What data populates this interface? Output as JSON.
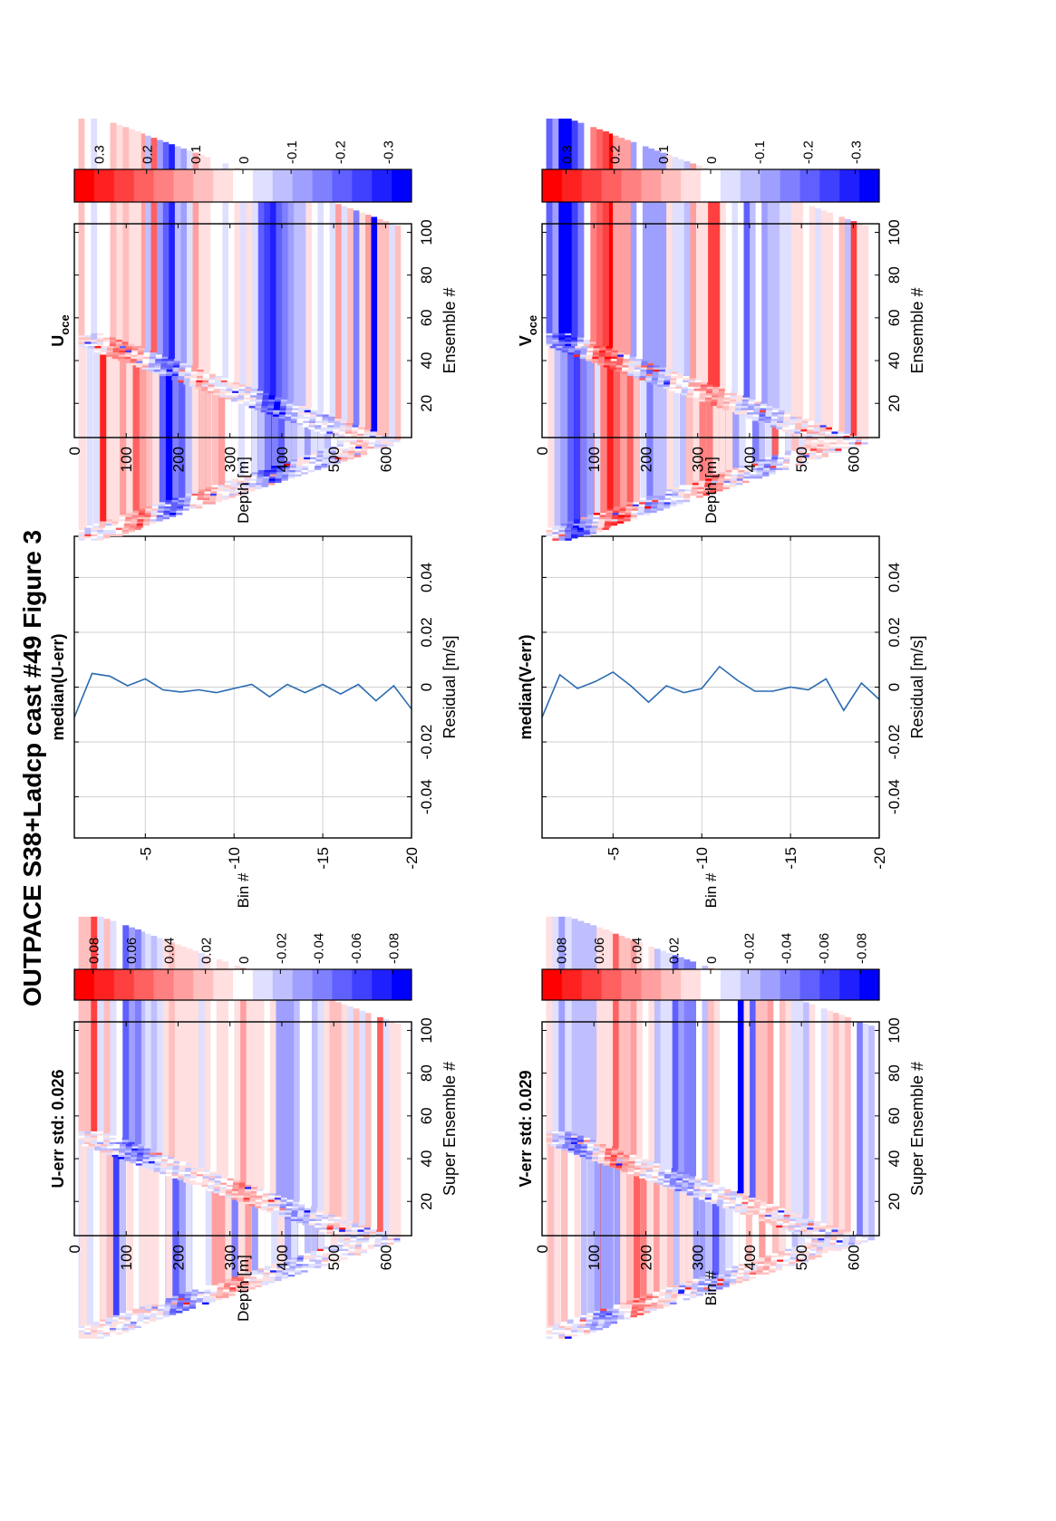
{
  "page_title": "OUTPACE S38+Ladcp cast #49  Figure 3",
  "colors": {
    "line": "#2a6ab0",
    "frame": "#000000",
    "grid": "#d0d0d0"
  },
  "chart_data": [
    {
      "id": "u-err-panel",
      "type": "heatmap",
      "title": "U-err std: 0.026",
      "xlabel": "Super Ensemble #",
      "ylabel": "Depth [m]",
      "xlim": [
        4,
        104
      ],
      "ylim": [
        0,
        650
      ],
      "xticks": [
        20,
        40,
        60,
        80,
        100
      ],
      "yticks": [
        0,
        100,
        200,
        300,
        400,
        500,
        600
      ],
      "colorbar": {
        "clim": [
          -0.09,
          0.09
        ],
        "ticks": [
          0.08,
          0.06,
          0.04,
          0.02,
          0,
          -0.02,
          -0.04,
          -0.06,
          -0.08
        ],
        "tick_labels": [
          "0.08",
          "0.06",
          "0.04",
          "0.02",
          "0",
          "-0.02",
          "-0.04",
          "-0.06",
          "-0.08"
        ]
      },
      "profile": {
        "turn_x": 52,
        "max_depth": 640,
        "band_width_m": 110
      },
      "bands": [
        {
          "down_depth": 200,
          "up_depth": 110,
          "value": -0.05
        },
        {
          "down_depth": 300,
          "up_depth": 320,
          "value": 0.04
        },
        {
          "down_depth": 420,
          "up_depth": 420,
          "value": -0.03
        }
      ]
    },
    {
      "id": "u-median-panel",
      "type": "line",
      "title": "median(U-err)",
      "xlabel": "Residual [m/s]",
      "ylabel": "Bin #",
      "xlim": [
        -0.055,
        0.055
      ],
      "ylim": [
        -1,
        -20
      ],
      "xticks": [
        -0.04,
        -0.02,
        0,
        0.02,
        0.04
      ],
      "yticks": [
        -5,
        -10,
        -15,
        -20
      ],
      "series": [
        {
          "x": [
            -0.011,
            0.005,
            0.004,
            0.0005,
            0.003,
            -0.001,
            -0.0018,
            -0.001,
            -0.002,
            -0.0005,
            0.001,
            -0.0035,
            0.001,
            -0.002,
            0.001,
            -0.0025,
            0.001,
            -0.005,
            0.0005,
            -0.008
          ],
          "y": [
            -1,
            -2,
            -3,
            -4,
            -5,
            -6,
            -7,
            -8,
            -9,
            -10,
            -11,
            -12,
            -13,
            -14,
            -15,
            -16,
            -17,
            -18,
            -19,
            -20
          ]
        }
      ]
    },
    {
      "id": "u-oce-panel",
      "type": "heatmap",
      "title": "U",
      "title_sub": "oce",
      "xlabel": "Ensemble #",
      "ylabel": "Depth [m]",
      "xlim": [
        4,
        104
      ],
      "ylim": [
        0,
        650
      ],
      "xticks": [
        20,
        40,
        60,
        80,
        100
      ],
      "yticks": [
        0,
        100,
        200,
        300,
        400,
        500,
        600
      ],
      "colorbar": {
        "clim": [
          -0.35,
          0.35
        ],
        "ticks": [
          0.3,
          0.2,
          0.1,
          0,
          -0.1,
          -0.2,
          -0.3
        ],
        "tick_labels": [
          "0.3",
          "0.2",
          "0.1",
          "0",
          "-0.1",
          "-0.2",
          "-0.3"
        ]
      },
      "profile": {
        "turn_x": 52,
        "max_depth": 640,
        "band_width_m": 110
      },
      "bands": [
        {
          "down_depth": 120,
          "up_depth": 90,
          "value": 0.2
        },
        {
          "down_depth": 180,
          "up_depth": 180,
          "value": -0.25
        },
        {
          "down_depth": 250,
          "up_depth": 230,
          "value": 0.1
        },
        {
          "down_depth": 380,
          "up_depth": 380,
          "value": -0.3
        },
        {
          "down_depth": 470,
          "up_depth": 480,
          "value": -0.08
        },
        {
          "down_depth": 540,
          "up_depth": 540,
          "value": 0.08
        }
      ]
    },
    {
      "id": "v-err-panel",
      "type": "heatmap",
      "title": "V-err std: 0.029",
      "xlabel": "Super Ensemble #",
      "ylabel": "Bin #",
      "xlim": [
        4,
        104
      ],
      "ylim": [
        0,
        650
      ],
      "xticks": [
        20,
        40,
        60,
        80,
        100
      ],
      "yticks": [
        0,
        100,
        200,
        300,
        400,
        500,
        600
      ],
      "colorbar": {
        "clim": [
          -0.09,
          0.09
        ],
        "ticks": [
          0.08,
          0.06,
          0.04,
          0.02,
          0,
          -0.02,
          -0.04,
          -0.06,
          -0.08
        ],
        "tick_labels": [
          "0.08",
          "0.06",
          "0.04",
          "0.02",
          "0",
          "-0.02",
          "-0.04",
          "-0.06",
          "-0.08"
        ]
      },
      "profile": {
        "turn_x": 52,
        "max_depth": 640,
        "band_width_m": 110
      },
      "bands": [
        {
          "down_depth": 120,
          "up_depth": 60,
          "value": -0.05
        },
        {
          "down_depth": 180,
          "up_depth": 140,
          "value": 0.05
        },
        {
          "down_depth": 330,
          "up_depth": 260,
          "value": -0.04
        },
        {
          "down_depth": 420,
          "up_depth": 420,
          "value": 0.02
        }
      ]
    },
    {
      "id": "v-median-panel",
      "type": "line",
      "title": "median(V-err)",
      "xlabel": "Residual [m/s]",
      "ylabel": "Bin #",
      "xlim": [
        -0.055,
        0.055
      ],
      "ylim": [
        -1,
        -20
      ],
      "xticks": [
        -0.04,
        -0.02,
        0,
        0.02,
        0.04
      ],
      "yticks": [
        -5,
        -10,
        -15,
        -20
      ],
      "series": [
        {
          "x": [
            -0.011,
            0.0045,
            -0.0005,
            0.002,
            0.0055,
            0.0005,
            -0.0055,
            0.0005,
            -0.002,
            -0.0005,
            0.0075,
            0.0025,
            -0.0015,
            -0.0015,
            0.0,
            -0.001,
            0.003,
            -0.0085,
            0.0015,
            -0.0045
          ],
          "y": [
            -1,
            -2,
            -3,
            -4,
            -5,
            -6,
            -7,
            -8,
            -9,
            -10,
            -11,
            -12,
            -13,
            -14,
            -15,
            -16,
            -17,
            -18,
            -19,
            -20
          ]
        }
      ]
    },
    {
      "id": "v-oce-panel",
      "type": "heatmap",
      "title": "V",
      "title_sub": "oce",
      "xlabel": "Ensemble #",
      "ylabel": "Depth [m]",
      "xlim": [
        4,
        104
      ],
      "ylim": [
        0,
        650
      ],
      "xticks": [
        20,
        40,
        60,
        80,
        100
      ],
      "yticks": [
        0,
        100,
        200,
        300,
        400,
        500,
        600
      ],
      "colorbar": {
        "clim": [
          -0.35,
          0.35
        ],
        "ticks": [
          0.3,
          0.2,
          0.1,
          0,
          -0.1,
          -0.2,
          -0.3
        ],
        "tick_labels": [
          "0.3",
          "0.2",
          "0.1",
          "0",
          "-0.1",
          "-0.2",
          "-0.3"
        ]
      },
      "profile": {
        "turn_x": 52,
        "max_depth": 640,
        "band_width_m": 110
      },
      "bands": [
        {
          "down_depth": 60,
          "up_depth": 40,
          "value": -0.3
        },
        {
          "down_depth": 140,
          "up_depth": 120,
          "value": 0.3
        },
        {
          "down_depth": 210,
          "up_depth": 200,
          "value": -0.15
        },
        {
          "down_depth": 320,
          "up_depth": 320,
          "value": 0.2
        },
        {
          "down_depth": 420,
          "up_depth": 420,
          "value": -0.12
        },
        {
          "down_depth": 520,
          "up_depth": 520,
          "value": 0.05
        }
      ]
    }
  ]
}
